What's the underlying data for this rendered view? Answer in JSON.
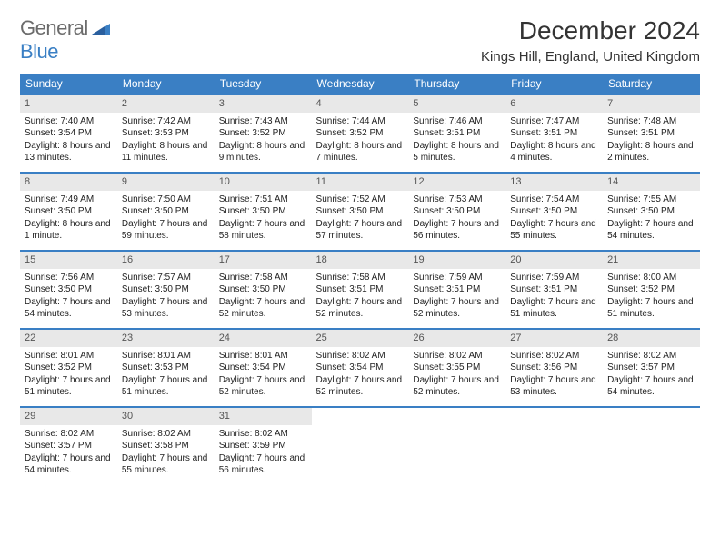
{
  "logo": {
    "word1": "General",
    "word2": "Blue"
  },
  "month_title": "December 2024",
  "location": "Kings Hill, England, United Kingdom",
  "colors": {
    "header_bg": "#3a7fc4",
    "header_text": "#ffffff",
    "daynum_bg": "#e8e8e8",
    "border": "#3a7fc4"
  },
  "weekdays": [
    "Sunday",
    "Monday",
    "Tuesday",
    "Wednesday",
    "Thursday",
    "Friday",
    "Saturday"
  ],
  "weeks": [
    [
      {
        "num": "1",
        "sunrise": "Sunrise: 7:40 AM",
        "sunset": "Sunset: 3:54 PM",
        "daylight": "Daylight: 8 hours and 13 minutes."
      },
      {
        "num": "2",
        "sunrise": "Sunrise: 7:42 AM",
        "sunset": "Sunset: 3:53 PM",
        "daylight": "Daylight: 8 hours and 11 minutes."
      },
      {
        "num": "3",
        "sunrise": "Sunrise: 7:43 AM",
        "sunset": "Sunset: 3:52 PM",
        "daylight": "Daylight: 8 hours and 9 minutes."
      },
      {
        "num": "4",
        "sunrise": "Sunrise: 7:44 AM",
        "sunset": "Sunset: 3:52 PM",
        "daylight": "Daylight: 8 hours and 7 minutes."
      },
      {
        "num": "5",
        "sunrise": "Sunrise: 7:46 AM",
        "sunset": "Sunset: 3:51 PM",
        "daylight": "Daylight: 8 hours and 5 minutes."
      },
      {
        "num": "6",
        "sunrise": "Sunrise: 7:47 AM",
        "sunset": "Sunset: 3:51 PM",
        "daylight": "Daylight: 8 hours and 4 minutes."
      },
      {
        "num": "7",
        "sunrise": "Sunrise: 7:48 AM",
        "sunset": "Sunset: 3:51 PM",
        "daylight": "Daylight: 8 hours and 2 minutes."
      }
    ],
    [
      {
        "num": "8",
        "sunrise": "Sunrise: 7:49 AM",
        "sunset": "Sunset: 3:50 PM",
        "daylight": "Daylight: 8 hours and 1 minute."
      },
      {
        "num": "9",
        "sunrise": "Sunrise: 7:50 AM",
        "sunset": "Sunset: 3:50 PM",
        "daylight": "Daylight: 7 hours and 59 minutes."
      },
      {
        "num": "10",
        "sunrise": "Sunrise: 7:51 AM",
        "sunset": "Sunset: 3:50 PM",
        "daylight": "Daylight: 7 hours and 58 minutes."
      },
      {
        "num": "11",
        "sunrise": "Sunrise: 7:52 AM",
        "sunset": "Sunset: 3:50 PM",
        "daylight": "Daylight: 7 hours and 57 minutes."
      },
      {
        "num": "12",
        "sunrise": "Sunrise: 7:53 AM",
        "sunset": "Sunset: 3:50 PM",
        "daylight": "Daylight: 7 hours and 56 minutes."
      },
      {
        "num": "13",
        "sunrise": "Sunrise: 7:54 AM",
        "sunset": "Sunset: 3:50 PM",
        "daylight": "Daylight: 7 hours and 55 minutes."
      },
      {
        "num": "14",
        "sunrise": "Sunrise: 7:55 AM",
        "sunset": "Sunset: 3:50 PM",
        "daylight": "Daylight: 7 hours and 54 minutes."
      }
    ],
    [
      {
        "num": "15",
        "sunrise": "Sunrise: 7:56 AM",
        "sunset": "Sunset: 3:50 PM",
        "daylight": "Daylight: 7 hours and 54 minutes."
      },
      {
        "num": "16",
        "sunrise": "Sunrise: 7:57 AM",
        "sunset": "Sunset: 3:50 PM",
        "daylight": "Daylight: 7 hours and 53 minutes."
      },
      {
        "num": "17",
        "sunrise": "Sunrise: 7:58 AM",
        "sunset": "Sunset: 3:50 PM",
        "daylight": "Daylight: 7 hours and 52 minutes."
      },
      {
        "num": "18",
        "sunrise": "Sunrise: 7:58 AM",
        "sunset": "Sunset: 3:51 PM",
        "daylight": "Daylight: 7 hours and 52 minutes."
      },
      {
        "num": "19",
        "sunrise": "Sunrise: 7:59 AM",
        "sunset": "Sunset: 3:51 PM",
        "daylight": "Daylight: 7 hours and 52 minutes."
      },
      {
        "num": "20",
        "sunrise": "Sunrise: 7:59 AM",
        "sunset": "Sunset: 3:51 PM",
        "daylight": "Daylight: 7 hours and 51 minutes."
      },
      {
        "num": "21",
        "sunrise": "Sunrise: 8:00 AM",
        "sunset": "Sunset: 3:52 PM",
        "daylight": "Daylight: 7 hours and 51 minutes."
      }
    ],
    [
      {
        "num": "22",
        "sunrise": "Sunrise: 8:01 AM",
        "sunset": "Sunset: 3:52 PM",
        "daylight": "Daylight: 7 hours and 51 minutes."
      },
      {
        "num": "23",
        "sunrise": "Sunrise: 8:01 AM",
        "sunset": "Sunset: 3:53 PM",
        "daylight": "Daylight: 7 hours and 51 minutes."
      },
      {
        "num": "24",
        "sunrise": "Sunrise: 8:01 AM",
        "sunset": "Sunset: 3:54 PM",
        "daylight": "Daylight: 7 hours and 52 minutes."
      },
      {
        "num": "25",
        "sunrise": "Sunrise: 8:02 AM",
        "sunset": "Sunset: 3:54 PM",
        "daylight": "Daylight: 7 hours and 52 minutes."
      },
      {
        "num": "26",
        "sunrise": "Sunrise: 8:02 AM",
        "sunset": "Sunset: 3:55 PM",
        "daylight": "Daylight: 7 hours and 52 minutes."
      },
      {
        "num": "27",
        "sunrise": "Sunrise: 8:02 AM",
        "sunset": "Sunset: 3:56 PM",
        "daylight": "Daylight: 7 hours and 53 minutes."
      },
      {
        "num": "28",
        "sunrise": "Sunrise: 8:02 AM",
        "sunset": "Sunset: 3:57 PM",
        "daylight": "Daylight: 7 hours and 54 minutes."
      }
    ],
    [
      {
        "num": "29",
        "sunrise": "Sunrise: 8:02 AM",
        "sunset": "Sunset: 3:57 PM",
        "daylight": "Daylight: 7 hours and 54 minutes."
      },
      {
        "num": "30",
        "sunrise": "Sunrise: 8:02 AM",
        "sunset": "Sunset: 3:58 PM",
        "daylight": "Daylight: 7 hours and 55 minutes."
      },
      {
        "num": "31",
        "sunrise": "Sunrise: 8:02 AM",
        "sunset": "Sunset: 3:59 PM",
        "daylight": "Daylight: 7 hours and 56 minutes."
      },
      null,
      null,
      null,
      null
    ]
  ]
}
